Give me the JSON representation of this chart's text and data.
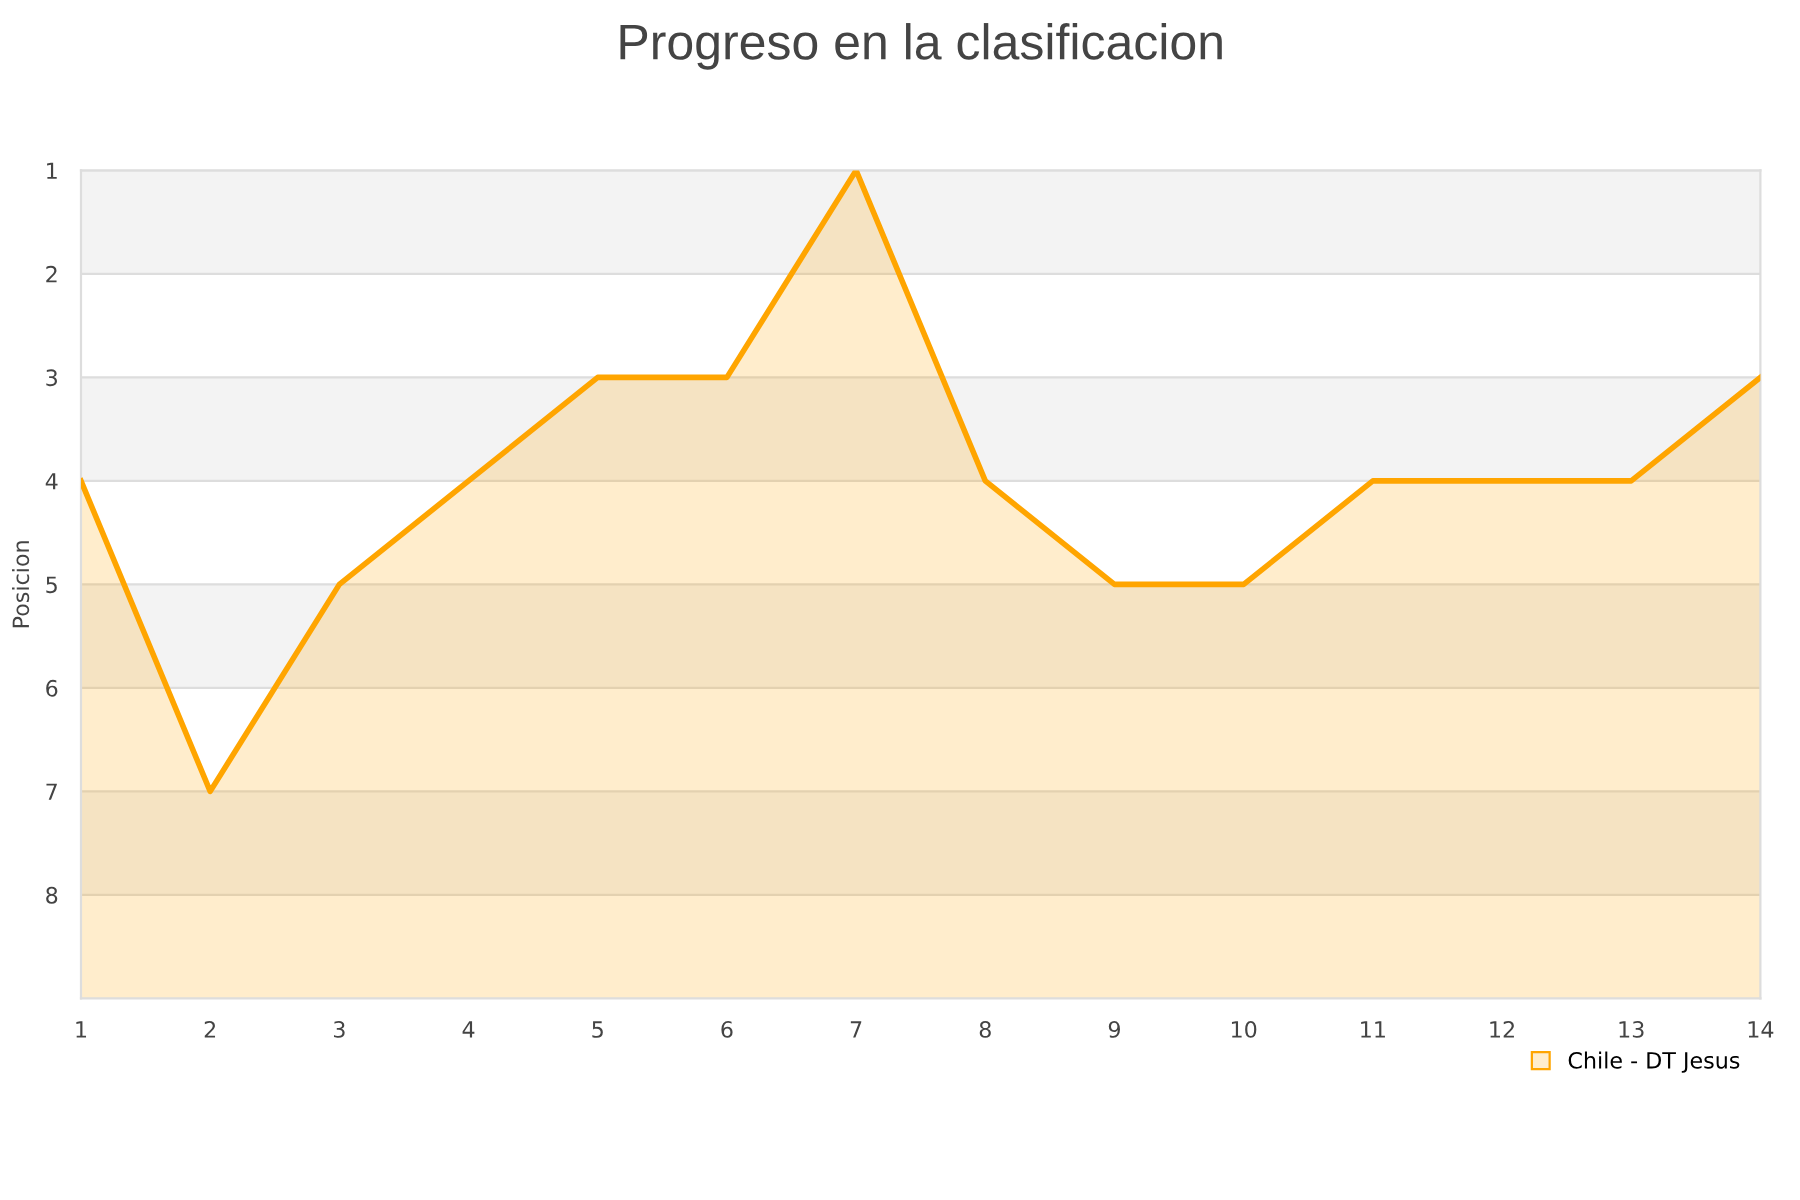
{
  "chart_data": {
    "type": "area",
    "title": "Progreso en la clasificacion",
    "ylabel": "Posicion",
    "x": [
      1,
      2,
      3,
      4,
      5,
      6,
      7,
      8,
      9,
      10,
      11,
      12,
      13,
      14
    ],
    "series": [
      {
        "name": "Chile - DT Jesus",
        "color": "#ffa500",
        "values": [
          4,
          7,
          5,
          4,
          3,
          3,
          1,
          4,
          5,
          5,
          4,
          4,
          4,
          3
        ]
      }
    ],
    "xlim": [
      1,
      14
    ],
    "xticks": [
      1,
      2,
      3,
      4,
      5,
      6,
      7,
      8,
      9,
      10,
      11,
      12,
      13,
      14
    ],
    "ylim": [
      9,
      1
    ],
    "yticks": [
      1,
      2,
      3,
      4,
      5,
      6,
      7,
      8
    ],
    "bands": [
      {
        "axis": "y",
        "from": 1,
        "to": 2,
        "color": "#f3f3f3"
      },
      {
        "axis": "y",
        "from": 3,
        "to": 4,
        "color": "#f3f3f3"
      },
      {
        "axis": "y",
        "from": 5,
        "to": 6,
        "color": "#f3f3f3"
      },
      {
        "axis": "y",
        "from": 7,
        "to": 8,
        "color": "#f3f3f3"
      }
    ],
    "grid": "y",
    "legend": "bottom right"
  }
}
